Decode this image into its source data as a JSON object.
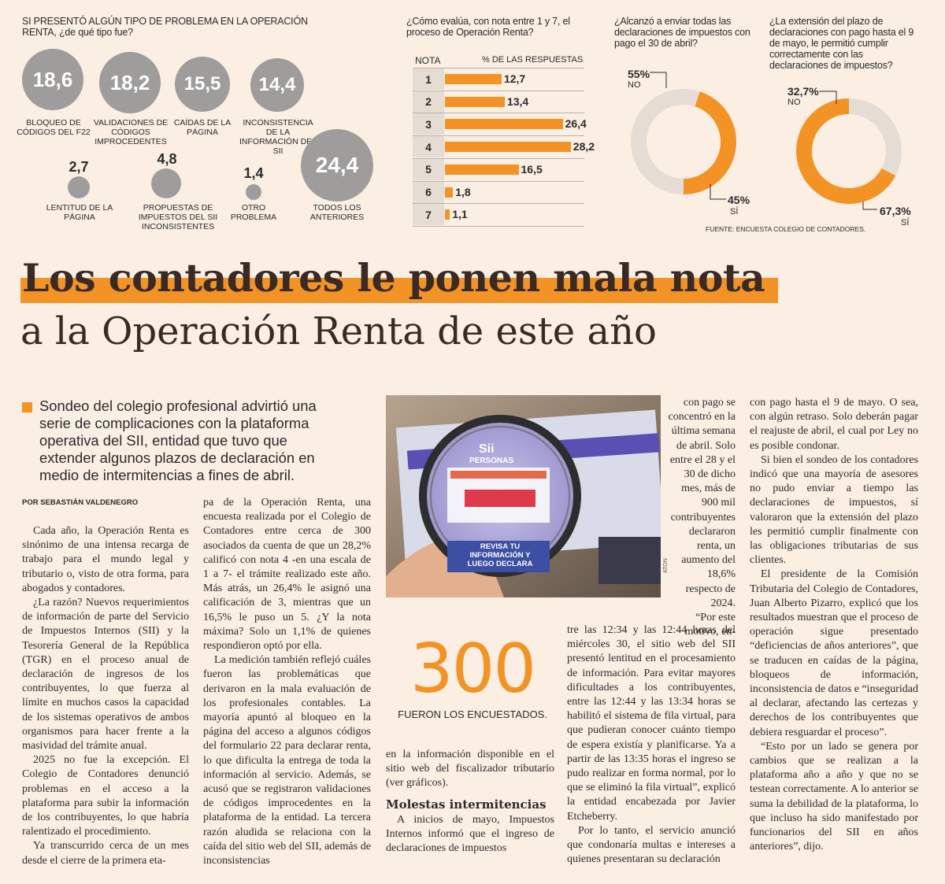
{
  "infographic": {
    "problems": {
      "title": "SI PRESENTÓ ALGÚN TIPO DE PROBLEMA EN LA OPERACIÓN RENTA, ¿de qué tipo fue?",
      "items": [
        {
          "value": "18,6",
          "label": "BLOQUEO DE CÓDIGOS DEL F22"
        },
        {
          "value": "18,2",
          "label": "VALIDACIONES DE CÓDIGOS IMPROCEDENTES"
        },
        {
          "value": "15,5",
          "label": "CAÍDAS DE LA PÁGINA"
        },
        {
          "value": "14,4",
          "label": "INCONSISTENCIA DE LA INFORMACIÓN DEL SII"
        },
        {
          "value": "2,7",
          "label": "LENTITUD DE LA PÁGINA"
        },
        {
          "value": "4,8",
          "label": "PROPUESTAS DE IMPUESTOS DEL SII INCONSISTENTES"
        },
        {
          "value": "1,4",
          "label": "OTRO PROBLEMA"
        },
        {
          "value": "24,4",
          "label": "TODOS LOS ANTERIORES"
        }
      ]
    },
    "grades": {
      "title": "¿Cómo evalúa, con nota entre 1 y 7, el proceso de Operación Renta?",
      "col_grade": "NOTA",
      "col_pct": "% DE LAS RESPUESTAS"
    },
    "donut_april": {
      "title": "¿Alcanzó a enviar todas las declaraciones de impuestos con pago el 30 de abril?",
      "no_value": "55%",
      "no_label": "NO",
      "yes_value": "45%",
      "yes_label": "SÍ"
    },
    "donut_may": {
      "title": "¿La extensión del plazo de declaraciones con pago hasta el 9 de mayo, le permitió cumplir correctamente con las declaraciones de impuestos?",
      "no_value": "32,7%",
      "no_label": "NO",
      "yes_value": "67,3%",
      "yes_label": "SÍ"
    },
    "source": "FUENTE: ENCUESTA COLEGIO DE CONTADORES."
  },
  "chart_data": [
    {
      "type": "bar",
      "title": "¿Cómo evalúa, con nota entre 1 y 7, el proceso de Operación Renta?",
      "xlabel": "NOTA",
      "ylabel": "% DE LAS RESPUESTAS",
      "categories": [
        "1",
        "2",
        "3",
        "4",
        "5",
        "6",
        "7"
      ],
      "values": [
        12.7,
        13.4,
        26.4,
        28.2,
        16.5,
        1.8,
        1.1
      ],
      "labels": [
        "12,7",
        "13,4",
        "26,4",
        "28,2",
        "16,5",
        "1,8",
        "1,1"
      ],
      "orientation": "horizontal",
      "color": "#f39325",
      "xlim": [
        0,
        30
      ]
    },
    {
      "type": "pie",
      "title": "¿Alcanzó a enviar todas las declaraciones de impuestos con pago el 30 de abril?",
      "categories": [
        "NO",
        "SÍ"
      ],
      "values": [
        55,
        45
      ],
      "colors": [
        "#e5dcd4",
        "#f39325"
      ]
    },
    {
      "type": "pie",
      "title": "¿La extensión del plazo de declaraciones con pago hasta el 9 de mayo, le permitió cumplir correctamente con las declaraciones de impuestos?",
      "categories": [
        "NO",
        "SÍ"
      ],
      "values": [
        32.7,
        67.3
      ],
      "colors": [
        "#e5dcd4",
        "#f39325"
      ]
    }
  ],
  "article": {
    "headline_line1": "Los contadores le ponen mala nota",
    "headline_line2": "a la Operación Renta de este año",
    "lead": "Sondeo del colegio profesional advirtió una serie de complicaciones con la plataforma operativa del SII, entidad que tuvo que extender algunos plazos de declaración en medio de intermitencias a fines de abril.",
    "byline": "POR SEBASTIÁN VALDENEGRO",
    "col1": [
      "Cada año, la Operación Renta es sinónimo de una intensa recarga de trabajo para el mundo legal y tributario o, visto de otra forma, para abogados y contadores.",
      "¿La razón? Nuevos requerimientos de información de parte del Servicio de Impuestos Internos (SII) y la Tesorería General de la República (TGR) en el proceso anual de declaración de ingresos de los contribuyentes, lo que fuerza al límite en muchos casos la capacidad de los sistemas operativos de ambos organismos para hacer frente a la masividad del trámite anual.",
      "2025 no fue la excepción. El Colegio de Contadores denunció problemas en el acceso a la plataforma para subir la información de los contribuyentes, lo que habría ralentizado el procedimiento.",
      "Ya transcurrido cerca de un mes desde el cierre de la primera eta-"
    ],
    "col2": [
      "pa de la Operación Renta, una encuesta realizada por el Colegio de Contadores entre cerca de 300 asociados da cuenta de que un 28,2% calificó con nota 4 -en una escala de 1 a 7- el trámite realizado este año. Más atrás, un 26,4% le asignó una calificación de 3, mientras que un 16,5% le puso un 5. ¿Y la nota máxima? Solo un 1,1% de quienes respondieron optó por ella.",
      "La medición también reflejó cuáles fueron las problemáticas que derivaron en la mala evaluación de los profesionales contables. La mayoría apuntó al bloqueo en la página del acceso a algunos códigos del formulario 22 para declarar renta, lo que dificulta la entrega de toda la información al servicio. Además, se acusó que se registraron validaciones de códigos improcedentes en la plataforma de la entidad. La tercera razón aludida se relaciona con la caída del sitio web del SII, además de inconsistencias"
    ],
    "col3": [
      "en la información disponible en el sitio web del fiscalizador tributario (ver gráficos)."
    ],
    "subhead": "Molestas intermitencias",
    "col3b": [
      "A inicios de mayo, Impuestos Internos informó que el ingreso de declaraciones de impuestos"
    ],
    "col4_top": "con pago se concentró en la última semana de abril. Solo entre el 28 y el 30 de dicho mes, más de 900 mil contribuyentes declararon renta, un aumento del 18,6% respecto de 2024.",
    "col4_quote_start": "“Por este motivo, en-",
    "col4": [
      "tre las 12:34 y las 12:44 horas del miércoles 30, el sitio web del SII presentó lentitud en el procesamiento de información. Para evitar mayores dificultades a los contribuyentes, entre las 12:44 y las 13:34 horas se habilitó el sistema de fila virtual, para que pudieran conocer cuánto tiempo de espera existía y planificarse. Ya a partir de las 13:35 horas el ingreso se pudo realizar en forma normal, por lo que se eliminó la fila virtual”, explicó la entidad encabezada por Javier Etcheberry.",
      "Por lo tanto, el servicio anunció que condonaría multas e intereses a quienes presentaran su declaración"
    ],
    "col5": [
      "con pago hasta el 9 de mayo. O sea, con algún retraso. Solo deberán pagar el reajuste de abril, el cual por Ley no es posible condonar.",
      "Si bien el sondeo de los contadores indicó que una mayoría de asesores no pudo enviar a tiempo las declaraciones de impuestos, sí valoraron que la extensión del plazo les permitió cumplir finalmente con las obligaciones tributarias de sus clientes.",
      "El presidente de la Comisión Tributaria del Colegio de Contadores, Juan Alberto Pizarro, explicó que los resultados muestran que el proceso de operación sigue presentado “deficiencias de años anteriores”, que se traducen en caídas de la página, bloqueos de información, inconsistencia de datos e “inseguridad al declarar, afectando las certezas y derechos de los contribuyentes que debiera resguardar el proceso”.",
      "“Esto por un lado se genera por cambios que se realizan a la plataforma año a año y que no se testean correctamente. A lo anterior se suma la debilidad de la plataforma, lo que incluso ha sido manifestado por funcionarios del SII en años anteriores”, dijo."
    ],
    "stat_value": "300",
    "stat_caption": "FUERON LOS ENCUESTADOS.",
    "photo": {
      "credit": "ATON",
      "screen_brand": "Sii",
      "screen_tab": "PERSONAS",
      "screen_banner": "REVISA TU INFORMACIÓN Y LUEGO DECLARA"
    }
  }
}
